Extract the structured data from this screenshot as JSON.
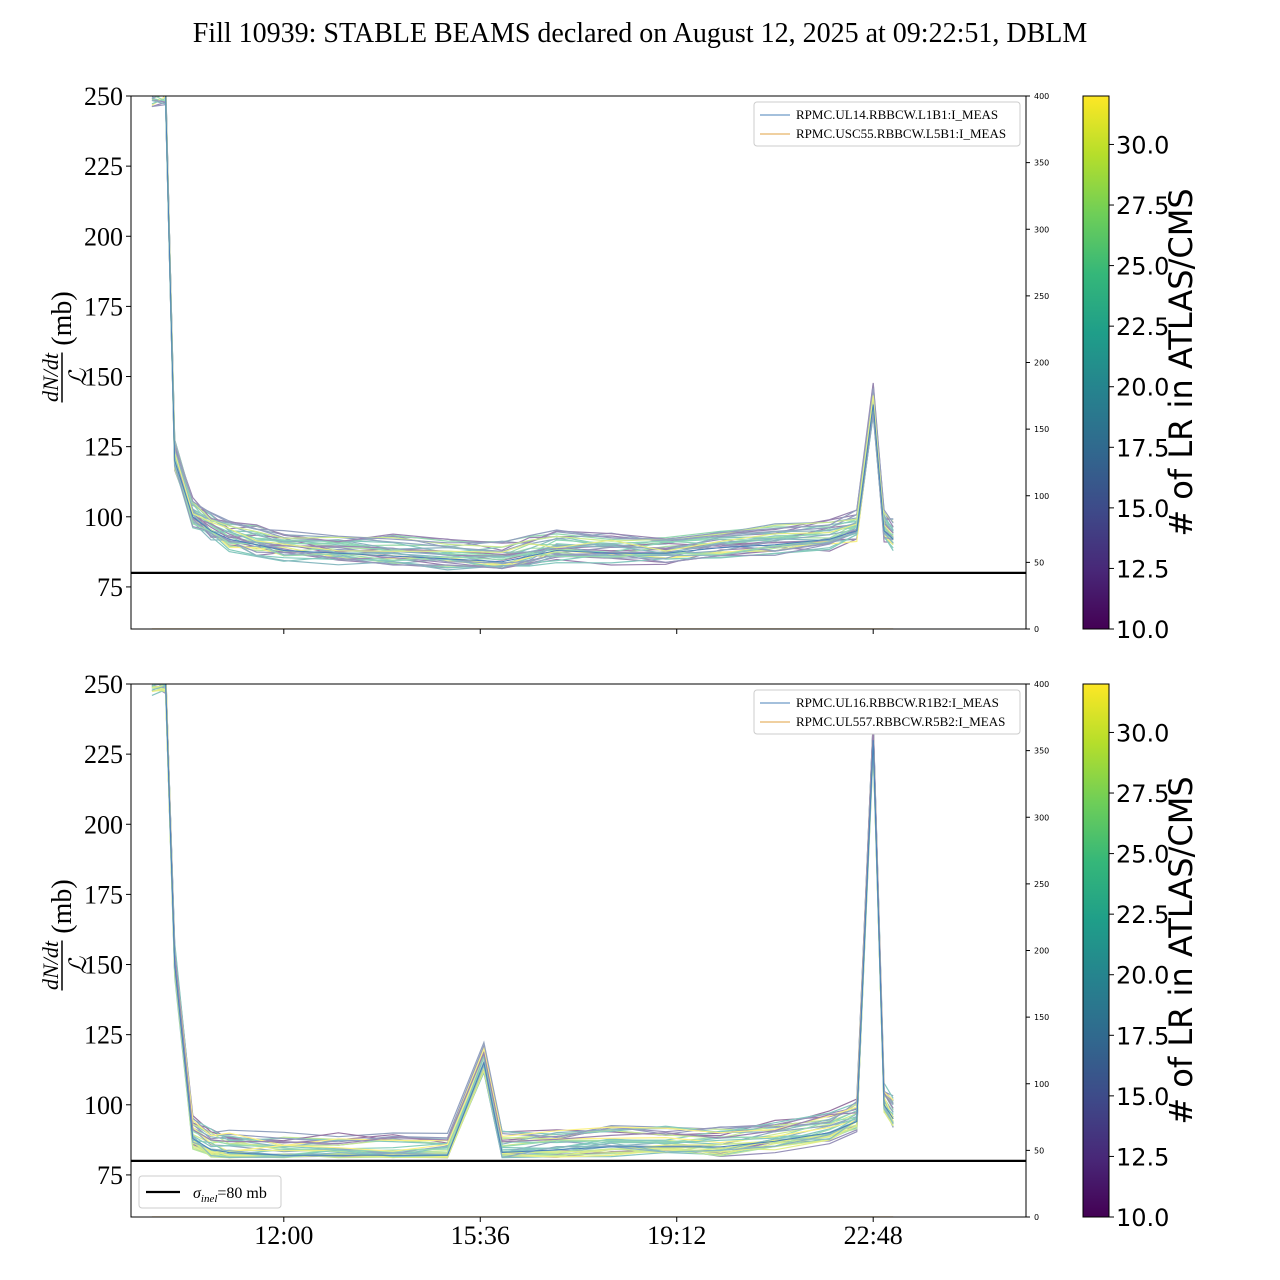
{
  "title": "Fill 10939: STABLE BEAMS declared on August 12, 2025 at 09:22:51, DBLM",
  "shared": {
    "y_ticks": [
      "250",
      "225",
      "200",
      "175",
      "150",
      "125",
      "100",
      "75"
    ],
    "y_label_num": "dN/dt",
    "y_label_den": "ℒ",
    "y_label_unit": "(mb)",
    "right_ticks": [
      "400",
      "350",
      "300",
      "250",
      "200",
      "150",
      "100",
      "50",
      "0"
    ],
    "x_ticks": [
      "12:00",
      "15:36",
      "19:12",
      "22:48"
    ],
    "colorbar_label": "# of LR in ATLAS/CMS",
    "colorbar_ticks": [
      "30.0",
      "27.5",
      "25.0",
      "22.5",
      "20.0",
      "17.5",
      "15.0",
      "12.5",
      "10.0"
    ]
  },
  "panels": [
    {
      "legend": [
        "RPMC.UL14.RBBCW.L1B1:I_MEAS",
        "RPMC.USC55.RBBCW.L5B1:I_MEAS"
      ]
    },
    {
      "legend": [
        "RPMC.UL16.RBBCW.R1B2:I_MEAS",
        "RPMC.UL557.RBBCW.R5B2:I_MEAS"
      ]
    }
  ],
  "sigma_legend": {
    "symbol": "σ",
    "subscript": "inel",
    "text": "=80 mb"
  },
  "colors": {
    "series1": "#4a80b8",
    "series2": "#e0a040",
    "reference_line": "#000000",
    "viridis": [
      "#440154",
      "#482878",
      "#3e4a89",
      "#31688e",
      "#26828e",
      "#1f9e89",
      "#35b779",
      "#6ece58",
      "#b5de2b",
      "#fde725"
    ]
  },
  "chart_data": [
    {
      "type": "line",
      "title": "Fill 10939: STABLE BEAMS declared on August 12, 2025 at 09:22:51, DBLM",
      "xlabel": "",
      "ylabel": "dN/dt / ℒ (mb)",
      "ylim": [
        60,
        250
      ],
      "y2lim": [
        0,
        400
      ],
      "xlim": [
        "09:12",
        "01:36"
      ],
      "x_ticks": [
        "12:00",
        "15:36",
        "19:12",
        "22:48"
      ],
      "colorbar": {
        "label": "# of LR in ATLAS/CMS",
        "range": [
          10.0,
          32.0
        ]
      },
      "reference_line": {
        "y": 80,
        "label": "σinel=80 mb"
      },
      "series": [
        {
          "name": "RPMC.UL14.RBBCW.L1B1:I_MEAS",
          "x": [
            "09:35",
            "09:50",
            "10:00",
            "10:20",
            "10:40",
            "11:00",
            "11:30",
            "12:00",
            "13:00",
            "14:00",
            "15:00",
            "16:00",
            "16:30",
            "17:00",
            "18:00",
            "19:00",
            "20:00",
            "21:00",
            "22:00",
            "22:30",
            "22:48",
            "23:00",
            "23:10"
          ],
          "y": [
            250,
            250,
            120,
            100,
            95,
            92,
            90,
            88,
            87,
            86,
            85,
            84,
            86,
            88,
            87,
            87,
            89,
            90,
            92,
            95,
            140,
            95,
            92
          ]
        },
        {
          "name": "RPMC.USC55.RBBCW.L5B1:I_MEAS",
          "x": [
            "09:35",
            "23:10"
          ],
          "y": [
            60,
            60
          ]
        }
      ]
    },
    {
      "type": "line",
      "title": "",
      "xlabel": "",
      "ylabel": "dN/dt / ℒ (mb)",
      "ylim": [
        60,
        250
      ],
      "y2lim": [
        0,
        400
      ],
      "xlim": [
        "09:12",
        "01:36"
      ],
      "x_ticks": [
        "12:00",
        "15:36",
        "19:12",
        "22:48"
      ],
      "colorbar": {
        "label": "# of LR in ATLAS/CMS",
        "range": [
          10.0,
          32.0
        ]
      },
      "reference_line": {
        "y": 80,
        "label": "σinel=80 mb"
      },
      "series": [
        {
          "name": "RPMC.UL16.RBBCW.R1B2:I_MEAS",
          "x": [
            "09:35",
            "09:50",
            "10:00",
            "10:20",
            "10:40",
            "11:00",
            "12:00",
            "13:00",
            "14:00",
            "15:00",
            "15:40",
            "16:00",
            "17:00",
            "18:00",
            "19:00",
            "20:00",
            "21:00",
            "22:00",
            "22:30",
            "22:48",
            "23:00",
            "23:10"
          ],
          "y": [
            250,
            250,
            150,
            88,
            84,
            83,
            82,
            82,
            82,
            82,
            115,
            83,
            84,
            85,
            85,
            85,
            87,
            90,
            94,
            230,
            100,
            95
          ]
        },
        {
          "name": "RPMC.UL557.RBBCW.R5B2:I_MEAS",
          "x": [
            "09:35",
            "23:10"
          ],
          "y": [
            60,
            60
          ]
        }
      ]
    }
  ]
}
